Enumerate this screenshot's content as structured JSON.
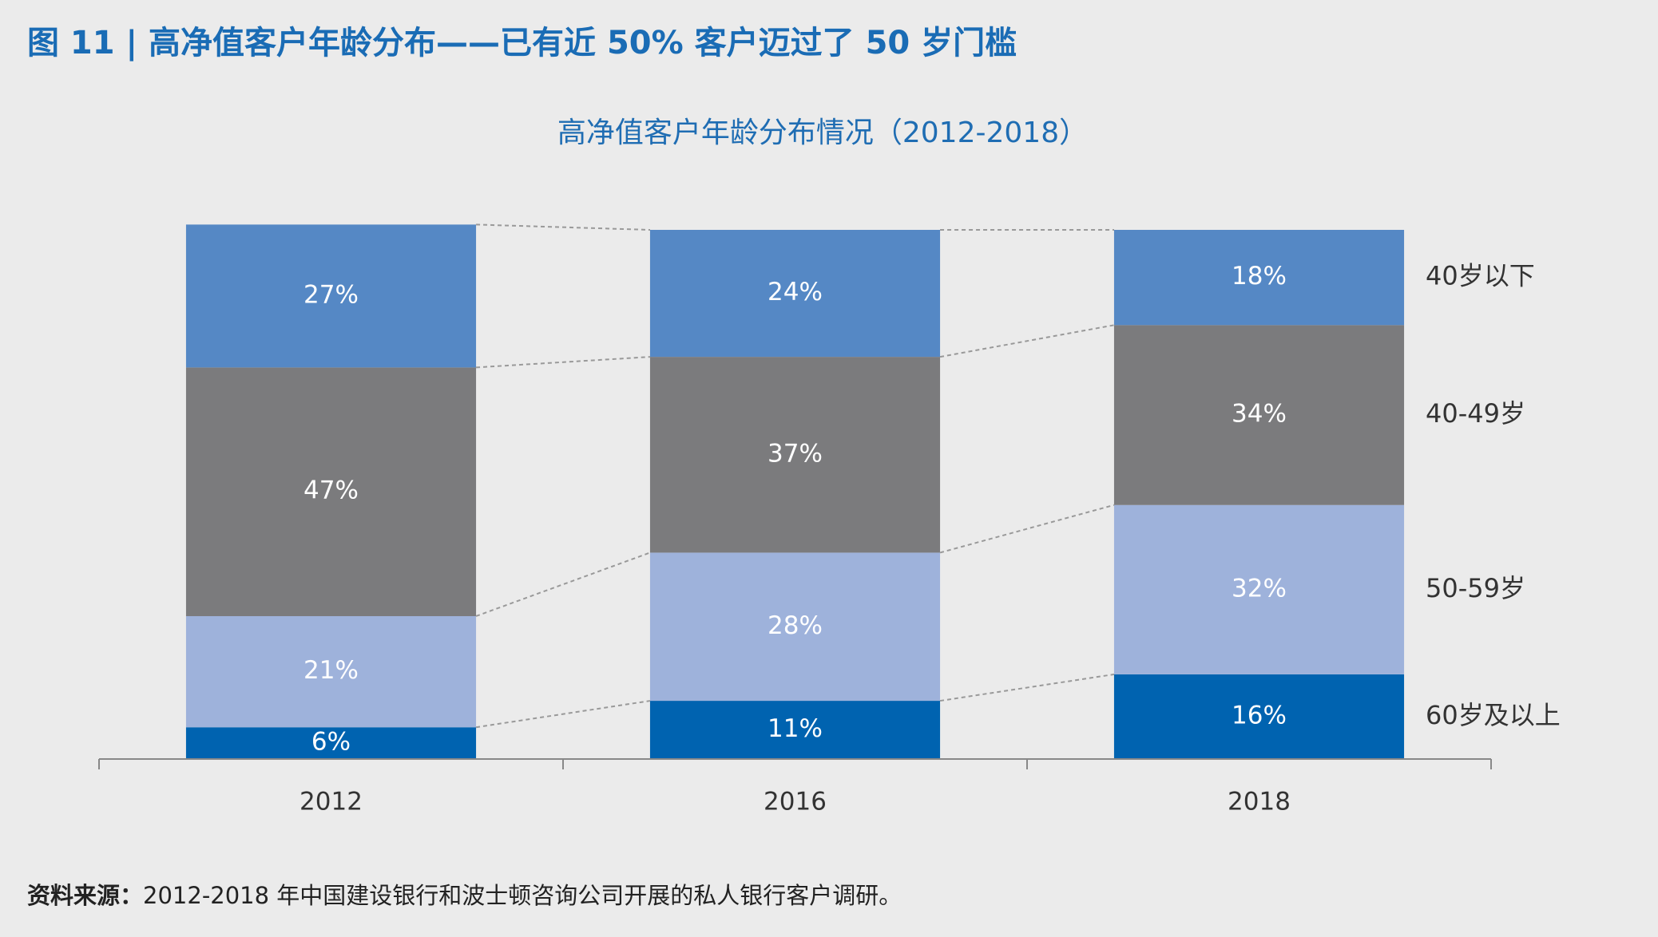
{
  "chart_data": {
    "type": "stacked-bar",
    "title": "图 11 | 高净值客户年龄分布——已有近 50% 客户迈过了 50 岁门槛",
    "subtitle": "高净值客户年龄分布情况（2012-2018）",
    "categories": [
      "2012",
      "2016",
      "2018"
    ],
    "series": [
      {
        "name": "60岁及以上",
        "color": "#0063b0",
        "values": [
          6,
          11,
          16
        ],
        "value_labels": [
          "6%",
          "11%",
          "16%"
        ]
      },
      {
        "name": "50-59岁",
        "color": "#9eb2db",
        "values": [
          21,
          28,
          32
        ],
        "value_labels": [
          "21%",
          "28%",
          "32%"
        ]
      },
      {
        "name": "40-49岁",
        "color": "#7b7b7d",
        "values": [
          47,
          37,
          34
        ],
        "value_labels": [
          "47%",
          "37%",
          "34%"
        ]
      },
      {
        "name": "40岁以下",
        "color": "#5588c5",
        "values": [
          27,
          24,
          18
        ],
        "value_labels": [
          "27%",
          "24%",
          "18%"
        ]
      }
    ],
    "source_label": "资料来源：",
    "source": "2012-2018 年中国建设银行和波士顿咨询公司开展的私人银行客户调研。"
  }
}
